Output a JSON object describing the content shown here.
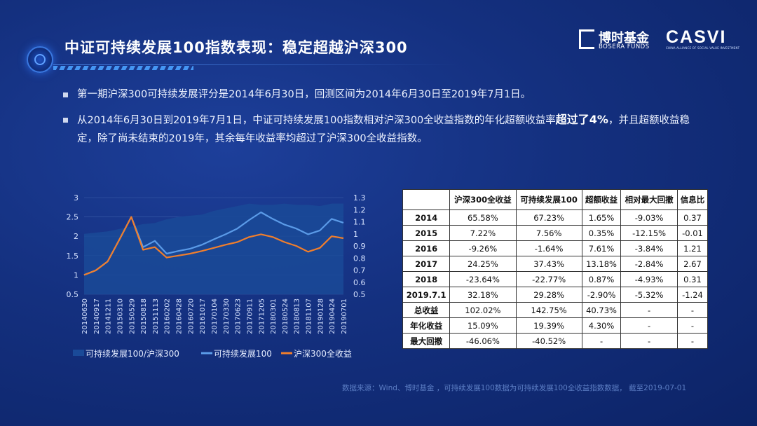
{
  "header": {
    "title": "中证可持续发展100指数表现：稳定超越沪深300",
    "logo_bosera_cn": "博时基金",
    "logo_bosera_en": "BOSERA FUNDS",
    "logo_casvi": "CASVI",
    "logo_casvi_sub": "CHINA ALLIANCE OF SOCIAL VALUE INVESTMENT"
  },
  "bullets": [
    {
      "text": "第一期沪深300可持续发展评分是2014年6月30日，回测区间为2014年6月30日至2019年7月1日。"
    },
    {
      "pre": "从2014年6月30日到2019年7月1日，中证可持续发展100指数相对沪深300全收益指数的年化超额收益率",
      "bold": "超过了4%",
      "post": "，并且超额收益稳定，除了尚未结束的2019年，其余每年收益率均超过了沪深300全收益指数。"
    }
  ],
  "chart_data": {
    "type": "line",
    "x": [
      "20140630",
      "20140917",
      "20141211",
      "20150310",
      "20150529",
      "20150818",
      "20151113",
      "20160202",
      "20160428",
      "20160720",
      "20161017",
      "20170104",
      "20170330",
      "20170623",
      "20170911",
      "20171205",
      "20180301",
      "20180524",
      "20180813",
      "20181107",
      "20190128",
      "20190424",
      "20190701"
    ],
    "y_left_ticks": [
      "0.5",
      "1",
      "1.5",
      "2",
      "2.5",
      "3"
    ],
    "ylim_left": [
      0.5,
      3
    ],
    "y_right_ticks": [
      "0.5",
      "0.6",
      "0.7",
      "0.8",
      "0.9",
      "1",
      "1.1",
      "1.2",
      "1.3"
    ],
    "ylim_right": [
      0.5,
      1.3
    ],
    "series": [
      {
        "name": "可持续发展100/沪深300",
        "axis": "right",
        "kind": "area",
        "color": "#1a4a98",
        "values": [
          1.0,
          1.01,
          1.02,
          1.04,
          1.06,
          1.08,
          1.09,
          1.12,
          1.14,
          1.15,
          1.16,
          1.19,
          1.21,
          1.23,
          1.25,
          1.24,
          1.24,
          1.25,
          1.24,
          1.24,
          1.23,
          1.25,
          1.25
        ]
      },
      {
        "name": "可持续发展100",
        "axis": "left",
        "kind": "line",
        "color": "#5b9be8",
        "values": [
          1.0,
          1.12,
          1.35,
          1.92,
          2.5,
          1.72,
          1.88,
          1.55,
          1.62,
          1.68,
          1.78,
          1.92,
          2.05,
          2.2,
          2.42,
          2.62,
          2.45,
          2.3,
          2.2,
          2.05,
          2.15,
          2.45,
          2.35
        ]
      },
      {
        "name": "沪深300全收益",
        "axis": "left",
        "kind": "line",
        "color": "#f07e2c",
        "values": [
          1.0,
          1.12,
          1.35,
          1.92,
          2.5,
          1.65,
          1.72,
          1.45,
          1.5,
          1.55,
          1.62,
          1.7,
          1.78,
          1.85,
          1.98,
          2.05,
          1.98,
          1.85,
          1.75,
          1.6,
          1.7,
          2.0,
          1.95
        ]
      }
    ],
    "legend_position": "bottom",
    "grid": true
  },
  "table": {
    "headers": [
      "",
      "沪深300全收益",
      "可持续发展100",
      "超额收益",
      "相对最大回撤",
      "信息比"
    ],
    "rows": [
      [
        "2014",
        "65.58%",
        "67.23%",
        "1.65%",
        "-9.03%",
        "0.37"
      ],
      [
        "2015",
        "7.22%",
        "7.56%",
        "0.35%",
        "-12.15%",
        "-0.01"
      ],
      [
        "2016",
        "-9.26%",
        "-1.64%",
        "7.61%",
        "-3.84%",
        "1.21"
      ],
      [
        "2017",
        "24.25%",
        "37.43%",
        "13.18%",
        "-2.84%",
        "2.67"
      ],
      [
        "2018",
        "-23.64%",
        "-22.77%",
        "0.87%",
        "-4.93%",
        "0.31"
      ],
      [
        "2019.7.1",
        "32.18%",
        "29.28%",
        "-2.90%",
        "-5.32%",
        "-1.24"
      ],
      [
        "总收益",
        "102.02%",
        "142.75%",
        "40.73%",
        "-",
        "-"
      ],
      [
        "年化收益",
        "15.09%",
        "19.39%",
        "4.30%",
        "-",
        "-"
      ],
      [
        "最大回撤",
        "-46.06%",
        "-40.52%",
        "-",
        "-",
        "-"
      ]
    ]
  },
  "source": "数据来源：Wind、博时基金 ，可持续发展100数据为可持续发展100全收益指数数据， 截至2019-07-01",
  "colors": {
    "background": "#14307f",
    "accent": "#4aa0ff",
    "orange": "#f07e2c",
    "blue_line": "#5b9be8"
  }
}
